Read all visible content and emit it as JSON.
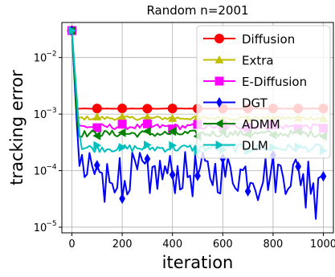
{
  "chart_data": {
    "type": "line",
    "title": "Random n=2001",
    "xlabel": "iteration",
    "ylabel": "tracking error",
    "xlim": [
      -40,
      1040
    ],
    "ylim_log10": [
      -5.1,
      -1.38
    ],
    "y_scale": "log",
    "grid": true,
    "legend_position": "top-right",
    "x_ticks": [
      0,
      200,
      400,
      600,
      800,
      1000
    ],
    "x_tick_labels": [
      "0",
      "200",
      "400",
      "600",
      "800",
      "1000"
    ],
    "y_ticks": [
      1e-05,
      0.0001,
      0.001,
      0.01
    ],
    "y_tick_labels": [
      "10",
      "10",
      "10",
      "10"
    ],
    "y_tick_exponents": [
      "−5",
      "−4",
      "−3",
      "−2"
    ],
    "series": [
      {
        "name": "Diffusion",
        "color": "#ff0000",
        "marker": "circle",
        "initial": 0.03,
        "steady": 0.00125,
        "noise_log10": 0.004,
        "transient_end": 18
      },
      {
        "name": "Extra",
        "color": "#bfbf00",
        "marker": "triangle-up",
        "initial": 0.03,
        "steady": 0.00085,
        "noise_log10": 0.035,
        "transient_end": 20
      },
      {
        "name": "E-Diffusion",
        "color": "#ff00ff",
        "marker": "square",
        "initial": 0.03,
        "steady": 0.0006,
        "noise_log10": 0.05,
        "transient_end": 22
      },
      {
        "name": "DGT",
        "color": "#0000ff",
        "marker": "diamond",
        "initial": 0.03,
        "steady": 9e-05,
        "noise_log10": 0.38,
        "transient_end": 30
      },
      {
        "name": "ADMM",
        "color": "#008000",
        "marker": "triangle-left",
        "initial": 0.03,
        "steady": 0.00045,
        "noise_log10": 0.06,
        "transient_end": 24
      },
      {
        "name": "DLM",
        "color": "#00bfbf",
        "marker": "triangle-right",
        "initial": 0.03,
        "steady": 0.00025,
        "noise_log10": 0.07,
        "transient_end": 34
      }
    ],
    "marker_x": [
      0,
      100,
      200,
      300,
      400,
      500,
      600,
      700,
      800,
      900,
      1000
    ],
    "x_samples": [
      0,
      1000,
      10
    ]
  }
}
